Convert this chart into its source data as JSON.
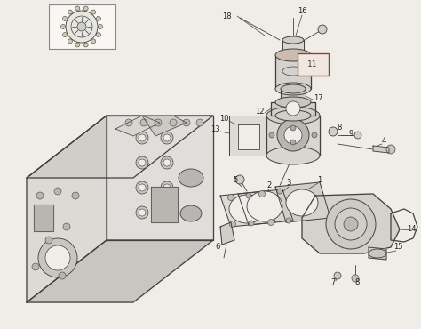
{
  "bg_color": "#f0ede8",
  "line_color": "#404040",
  "label_color": "#222222",
  "fig_width": 4.74,
  "fig_height": 3.7,
  "dpi": 100
}
